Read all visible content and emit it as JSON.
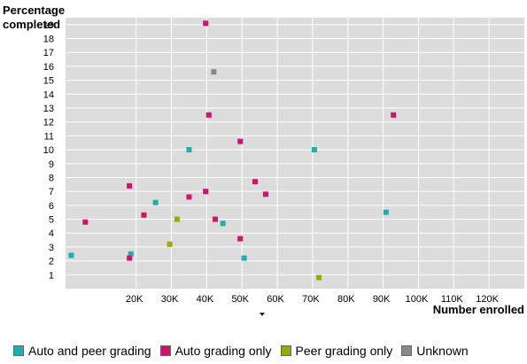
{
  "chart_data": {
    "type": "scatter",
    "ylabel": "Percentage\ncompleted",
    "xlabel": "Number enrolled",
    "xlim": [
      0,
      130000
    ],
    "ylim": [
      0,
      19.5
    ],
    "x_ticks": [
      20000,
      30000,
      40000,
      50000,
      60000,
      70000,
      80000,
      90000,
      100000,
      110000,
      120000
    ],
    "x_tick_labels": [
      "20K",
      "30K",
      "40K",
      "50K",
      "60K",
      "70K",
      "80K",
      "90K",
      "100K",
      "110K",
      "120K"
    ],
    "y_ticks": [
      1,
      2,
      3,
      4,
      5,
      6,
      7,
      8,
      9,
      10,
      11,
      12,
      13,
      14,
      15,
      16,
      17,
      18,
      19
    ],
    "y_tick_labels": [
      "1",
      "2",
      "3",
      "4",
      "5",
      "6",
      "7",
      "8",
      "9",
      "10",
      "11",
      "12",
      "13",
      "14",
      "15",
      "16",
      "17",
      "18",
      "19"
    ],
    "grid": true,
    "legend_position": "bottom",
    "series": [
      {
        "name": "Auto and peer grading",
        "color": "#1ab0b0",
        "points": [
          {
            "x": 1600,
            "y": 2.4
          },
          {
            "x": 18500,
            "y": 2.5
          },
          {
            "x": 25500,
            "y": 6.2
          },
          {
            "x": 35000,
            "y": 10.0
          },
          {
            "x": 44600,
            "y": 4.7
          },
          {
            "x": 50600,
            "y": 2.2
          },
          {
            "x": 70500,
            "y": 10.0
          },
          {
            "x": 90800,
            "y": 5.5
          }
        ]
      },
      {
        "name": "Auto grading only",
        "color": "#d4116e",
        "points": [
          {
            "x": 5600,
            "y": 4.8
          },
          {
            "x": 18100,
            "y": 7.4
          },
          {
            "x": 18100,
            "y": 2.2
          },
          {
            "x": 22200,
            "y": 5.3
          },
          {
            "x": 35000,
            "y": 6.6
          },
          {
            "x": 39700,
            "y": 19.1
          },
          {
            "x": 39700,
            "y": 7.0
          },
          {
            "x": 40600,
            "y": 12.5
          },
          {
            "x": 42400,
            "y": 5.0
          },
          {
            "x": 49500,
            "y": 10.6
          },
          {
            "x": 49500,
            "y": 3.6
          },
          {
            "x": 53700,
            "y": 7.7
          },
          {
            "x": 56700,
            "y": 6.8
          },
          {
            "x": 92900,
            "y": 12.5
          }
        ]
      },
      {
        "name": "Peer grading only",
        "color": "#99aa00",
        "points": [
          {
            "x": 29500,
            "y": 3.2
          },
          {
            "x": 31600,
            "y": 5.0
          },
          {
            "x": 71800,
            "y": 0.8
          }
        ]
      },
      {
        "name": "Unknown",
        "color": "#888888",
        "points": [
          {
            "x": 42000,
            "y": 15.6
          }
        ]
      }
    ]
  }
}
